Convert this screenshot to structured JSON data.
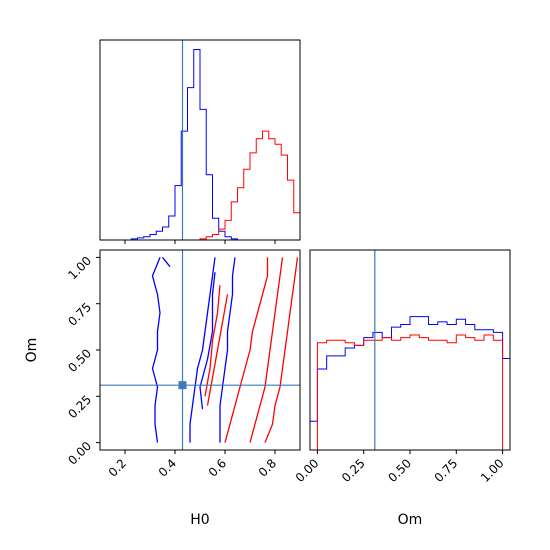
{
  "chart_data": [
    {
      "type": "histogram",
      "panel": "H0 marginal",
      "xlim": [
        0.1,
        0.9
      ],
      "bin_edges": [
        0.1,
        0.125,
        0.15,
        0.175,
        0.2,
        0.225,
        0.25,
        0.275,
        0.3,
        0.325,
        0.35,
        0.375,
        0.4,
        0.425,
        0.45,
        0.475,
        0.5,
        0.525,
        0.55,
        0.575,
        0.6,
        0.625,
        0.65,
        0.675,
        0.7,
        0.725,
        0.75,
        0.775,
        0.8,
        0.825,
        0.85,
        0.875,
        0.9
      ],
      "truth": 0.43,
      "series": [
        {
          "color": "#0000ff",
          "counts": [
            0,
            0,
            0,
            0,
            0,
            1,
            2,
            3,
            5,
            8,
            12,
            22,
            50,
            100,
            140,
            175,
            120,
            60,
            20,
            8,
            3,
            1,
            0,
            0,
            0,
            0,
            0,
            0,
            0,
            0,
            0,
            0
          ]
        },
        {
          "color": "#ff0000",
          "counts": [
            0,
            0,
            0,
            0,
            0,
            0,
            0,
            0,
            0,
            0,
            0,
            0,
            0,
            0,
            0,
            0,
            1,
            3,
            5,
            10,
            18,
            35,
            48,
            65,
            80,
            93,
            100,
            93,
            88,
            78,
            55,
            25
          ]
        }
      ]
    },
    {
      "type": "contour",
      "panel": "Om vs H0",
      "xlabel": "H0",
      "ylabel": "Om",
      "xlim": [
        0.1,
        0.9
      ],
      "ylim": [
        -0.04,
        1.04
      ],
      "xticks": [
        "0.2",
        "0.4",
        "0.6",
        "0.8"
      ],
      "yticks": [
        "0.00",
        "0.25",
        "0.50",
        "0.75",
        "1.00"
      ],
      "truth": {
        "H0": 0.43,
        "Om": 0.31
      },
      "series": [
        {
          "color": "#0000ff",
          "levels": [
            [
              [
                0.33,
                0.0
              ],
              [
                0.32,
                0.1
              ],
              [
                0.32,
                0.2
              ],
              [
                0.33,
                0.3
              ],
              [
                0.31,
                0.4
              ],
              [
                0.33,
                0.5
              ],
              [
                0.33,
                0.6
              ],
              [
                0.34,
                0.7
              ],
              [
                0.33,
                0.8
              ],
              [
                0.31,
                0.9
              ],
              [
                0.34,
                1.0
              ]
            ],
            [
              [
                0.46,
                0.0
              ],
              [
                0.46,
                0.1
              ],
              [
                0.47,
                0.2
              ],
              [
                0.48,
                0.3
              ],
              [
                0.49,
                0.4
              ],
              [
                0.51,
                0.5
              ],
              [
                0.52,
                0.6
              ],
              [
                0.53,
                0.7
              ],
              [
                0.54,
                0.8
              ],
              [
                0.55,
                0.9
              ],
              [
                0.56,
                1.0
              ]
            ],
            [
              [
                0.38,
                0.95
              ],
              [
                0.35,
                1.0
              ]
            ],
            [
              [
                0.58,
                0.0
              ],
              [
                0.58,
                0.1
              ],
              [
                0.58,
                0.2
              ],
              [
                0.59,
                0.3
              ],
              [
                0.6,
                0.4
              ],
              [
                0.61,
                0.5
              ],
              [
                0.61,
                0.6
              ],
              [
                0.62,
                0.7
              ],
              [
                0.63,
                0.8
              ],
              [
                0.63,
                0.9
              ],
              [
                0.64,
                1.0
              ]
            ],
            [
              [
                0.51,
                0.18
              ],
              [
                0.5,
                0.3
              ],
              [
                0.53,
                0.45
              ],
              [
                0.55,
                0.6
              ],
              [
                0.55,
                0.8
              ],
              [
                0.56,
                0.92
              ]
            ]
          ]
        },
        {
          "color": "#ff0000",
          "levels": [
            [
              [
                0.6,
                0.0
              ],
              [
                0.62,
                0.1
              ],
              [
                0.64,
                0.2
              ],
              [
                0.66,
                0.3
              ],
              [
                0.68,
                0.4
              ],
              [
                0.7,
                0.5
              ],
              [
                0.71,
                0.6
              ],
              [
                0.73,
                0.7
              ],
              [
                0.75,
                0.8
              ],
              [
                0.77,
                0.9
              ],
              [
                0.77,
                1.0
              ]
            ],
            [
              [
                0.7,
                0.0
              ],
              [
                0.72,
                0.1
              ],
              [
                0.74,
                0.2
              ],
              [
                0.76,
                0.3
              ],
              [
                0.77,
                0.4
              ],
              [
                0.78,
                0.5
              ],
              [
                0.79,
                0.6
              ],
              [
                0.8,
                0.7
              ],
              [
                0.81,
                0.8
              ],
              [
                0.82,
                0.9
              ],
              [
                0.83,
                1.0
              ]
            ],
            [
              [
                0.76,
                0.0
              ],
              [
                0.79,
                0.1
              ],
              [
                0.8,
                0.2
              ],
              [
                0.82,
                0.3
              ],
              [
                0.83,
                0.4
              ],
              [
                0.84,
                0.5
              ],
              [
                0.85,
                0.6
              ],
              [
                0.86,
                0.7
              ],
              [
                0.87,
                0.8
              ],
              [
                0.88,
                0.9
              ],
              [
                0.89,
                1.0
              ]
            ],
            [
              [
                0.52,
                0.25
              ],
              [
                0.54,
                0.4
              ],
              [
                0.55,
                0.55
              ],
              [
                0.57,
                0.7
              ],
              [
                0.58,
                0.85
              ]
            ],
            [
              [
                0.53,
                0.2
              ],
              [
                0.55,
                0.35
              ],
              [
                0.57,
                0.5
              ],
              [
                0.59,
                0.65
              ],
              [
                0.61,
                0.8
              ]
            ]
          ]
        }
      ]
    },
    {
      "type": "histogram",
      "panel": "Om marginal",
      "xlabel": "Om",
      "xlim": [
        -0.04,
        1.04
      ],
      "xticks": [
        "0.00",
        "0.25",
        "0.50",
        "0.75",
        "1.00"
      ],
      "bin_edges": [
        -0.04,
        0.0,
        0.05,
        0.1,
        0.15,
        0.2,
        0.25,
        0.3,
        0.35,
        0.4,
        0.45,
        0.5,
        0.55,
        0.6,
        0.65,
        0.7,
        0.75,
        0.8,
        0.85,
        0.9,
        0.95,
        1.0,
        1.04
      ],
      "truth": 0.31,
      "series": [
        {
          "color": "#0000ff",
          "counts": [
            22,
            62,
            72,
            72,
            78,
            80,
            86,
            90,
            86,
            94,
            96,
            102,
            102,
            96,
            98,
            96,
            100,
            96,
            92,
            92,
            90,
            70
          ]
        },
        {
          "color": "#ff0000",
          "counts": [
            0,
            82,
            84,
            84,
            82,
            80,
            84,
            84,
            86,
            84,
            86,
            88,
            86,
            84,
            84,
            82,
            88,
            86,
            84,
            88,
            84,
            0
          ]
        }
      ]
    }
  ],
  "labels": {
    "xlabel_left": "H0",
    "xlabel_right": "Om",
    "ylabel_left": "Om"
  },
  "colors": {
    "truth": "#3a7bb8",
    "series_blue": "#0000ff",
    "series_red": "#ff0000"
  }
}
